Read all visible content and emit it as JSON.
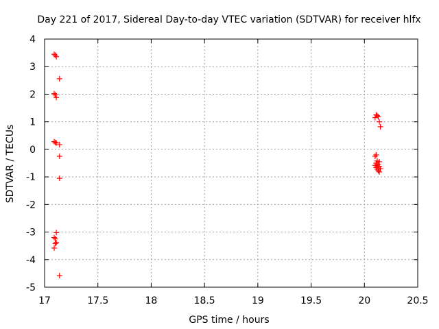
{
  "chart_data": {
    "type": "scatter",
    "title": "Day 221 of 2017, Sidereal Day-to-day VTEC variation (SDTVAR) for receiver hlfx",
    "xlabel": "GPS time / hours",
    "ylabel": "SDTVAR / TECUs",
    "xlim": [
      17,
      20.5
    ],
    "ylim": [
      -5,
      4
    ],
    "xticks": [
      "17",
      "17.5",
      "18",
      "18.5",
      "19",
      "19.5",
      "20",
      "20.5"
    ],
    "yticks": [
      "-5",
      "-4",
      "-3",
      "-2",
      "-1",
      "0",
      "1",
      "2",
      "3",
      "4"
    ],
    "xtick_values": [
      17,
      17.5,
      18,
      18.5,
      19,
      19.5,
      20,
      20.5
    ],
    "ytick_values": [
      -5,
      -4,
      -3,
      -2,
      -1,
      0,
      1,
      2,
      3,
      4
    ],
    "grid": true,
    "series": [
      {
        "name": "SDTVAR",
        "color": "#ff0000",
        "marker": "plus",
        "points": [
          [
            17.09,
            3.45
          ],
          [
            17.1,
            3.42
          ],
          [
            17.11,
            3.36
          ],
          [
            17.14,
            2.56
          ],
          [
            17.09,
            2.02
          ],
          [
            17.1,
            1.98
          ],
          [
            17.11,
            1.88
          ],
          [
            17.09,
            0.28
          ],
          [
            17.1,
            0.25
          ],
          [
            17.11,
            0.23
          ],
          [
            17.14,
            0.17
          ],
          [
            17.14,
            -0.25
          ],
          [
            17.14,
            -1.05
          ],
          [
            17.11,
            -3.02
          ],
          [
            17.09,
            -3.2
          ],
          [
            17.1,
            -3.24
          ],
          [
            17.11,
            -3.38
          ],
          [
            17.1,
            -3.42
          ],
          [
            17.09,
            -3.58
          ],
          [
            17.14,
            -4.58
          ],
          [
            20.11,
            1.25
          ],
          [
            20.12,
            1.22
          ],
          [
            20.13,
            1.18
          ],
          [
            20.1,
            1.15
          ],
          [
            20.14,
            1.0
          ],
          [
            20.15,
            0.82
          ],
          [
            20.11,
            -0.2
          ],
          [
            20.1,
            -0.25
          ],
          [
            20.12,
            -0.42
          ],
          [
            20.14,
            -0.45
          ],
          [
            20.11,
            -0.5
          ],
          [
            20.13,
            -0.55
          ],
          [
            20.1,
            -0.58
          ],
          [
            20.12,
            -0.6
          ],
          [
            20.14,
            -0.62
          ],
          [
            20.11,
            -0.66
          ],
          [
            20.15,
            -0.7
          ],
          [
            20.12,
            -0.72
          ],
          [
            20.13,
            -0.78
          ],
          [
            20.14,
            -0.82
          ]
        ]
      }
    ]
  }
}
